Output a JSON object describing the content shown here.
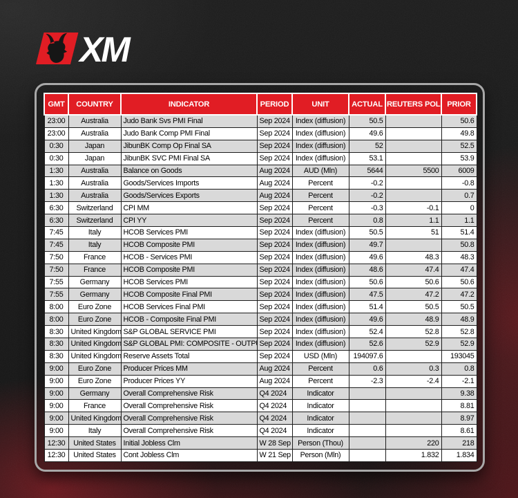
{
  "brand": {
    "logo_text": "XM",
    "logo_red": "#e11d24",
    "logo_text_color": "#ffffff",
    "bull_icon_color": "#161616"
  },
  "table": {
    "colors": {
      "header_bg": "#e11d24",
      "header_fg": "#ffffff",
      "row_odd": "#d9d9d9",
      "row_even": "#ffffff",
      "grid": "#1c1c1c",
      "panel_border": "#a8a8a8"
    },
    "headers": [
      "GMT",
      "COUNTRY",
      "INDICATOR",
      "PERIOD",
      "UNIT",
      "ACTUAL",
      "REUTERS POLL",
      "PRIOR"
    ],
    "rows": [
      [
        "23:00",
        "Australia",
        "Judo Bank Svs PMI Final",
        "Sep 2024",
        "Index (diffusion)",
        "50.5",
        "",
        "50.6"
      ],
      [
        "23:00",
        "Australia",
        "Judo Bank Comp PMI Final",
        "Sep 2024",
        "Index (diffusion)",
        "49.6",
        "",
        "49.8"
      ],
      [
        "0:30",
        "Japan",
        "JibunBK Comp Op Final SA",
        "Sep 2024",
        "Index (diffusion)",
        "52",
        "",
        "52.5"
      ],
      [
        "0:30",
        "Japan",
        "JibunBK SVC PMI Final SA",
        "Sep 2024",
        "Index (diffusion)",
        "53.1",
        "",
        "53.9"
      ],
      [
        "1:30",
        "Australia",
        "Balance on Goods",
        "Aug 2024",
        "AUD (Mln)",
        "5644",
        "5500",
        "6009"
      ],
      [
        "1:30",
        "Australia",
        "Goods/Services Imports",
        "Aug 2024",
        "Percent",
        "-0.2",
        "",
        "-0.8"
      ],
      [
        "1:30",
        "Australia",
        "Goods/Services Exports",
        "Aug 2024",
        "Percent",
        "-0.2",
        "",
        "0.7"
      ],
      [
        "6:30",
        "Switzerland",
        "CPI MM",
        "Sep 2024",
        "Percent",
        "-0.3",
        "-0.1",
        "0"
      ],
      [
        "6:30",
        "Switzerland",
        "CPI YY",
        "Sep 2024",
        "Percent",
        "0.8",
        "1.1",
        "1.1"
      ],
      [
        "7:45",
        "Italy",
        "HCOB Services PMI",
        "Sep 2024",
        "Index (diffusion)",
        "50.5",
        "51",
        "51.4"
      ],
      [
        "7:45",
        "Italy",
        "HCOB Composite PMI",
        "Sep 2024",
        "Index (diffusion)",
        "49.7",
        "",
        "50.8"
      ],
      [
        "7:50",
        "France",
        "HCOB - Services PMI",
        "Sep 2024",
        "Index (diffusion)",
        "49.6",
        "48.3",
        "48.3"
      ],
      [
        "7:50",
        "France",
        "HCOB Composite PMI",
        "Sep 2024",
        "Index (diffusion)",
        "48.6",
        "47.4",
        "47.4"
      ],
      [
        "7:55",
        "Germany",
        "HCOB Services PMI",
        "Sep 2024",
        "Index (diffusion)",
        "50.6",
        "50.6",
        "50.6"
      ],
      [
        "7:55",
        "Germany",
        "HCOB Composite Final PMI",
        "Sep 2024",
        "Index (diffusion)",
        "47.5",
        "47.2",
        "47.2"
      ],
      [
        "8:00",
        "Euro Zone",
        "HCOB Services Final PMI",
        "Sep 2024",
        "Index (diffusion)",
        "51.4",
        "50.5",
        "50.5"
      ],
      [
        "8:00",
        "Euro Zone",
        "HCOB - Composite Final PMI",
        "Sep 2024",
        "Index (diffusion)",
        "49.6",
        "48.9",
        "48.9"
      ],
      [
        "8:30",
        "United Kingdom",
        "S&P GLOBAL SERVICE PMI",
        "Sep 2024",
        "Index (diffusion)",
        "52.4",
        "52.8",
        "52.8"
      ],
      [
        "8:30",
        "United Kingdom",
        "S&P GLOBAL PMI: COMPOSITE - OUTPUT",
        "Sep 2024",
        "Index (diffusion)",
        "52.6",
        "52.9",
        "52.9"
      ],
      [
        "8:30",
        "United Kingdom",
        "Reserve Assets Total",
        "Sep 2024",
        "USD (Mln)",
        "194097.6",
        "",
        "193045"
      ],
      [
        "9:00",
        "Euro Zone",
        "Producer Prices MM",
        "Aug 2024",
        "Percent",
        "0.6",
        "0.3",
        "0.8"
      ],
      [
        "9:00",
        "Euro Zone",
        "Producer Prices YY",
        "Aug 2024",
        "Percent",
        "-2.3",
        "-2.4",
        "-2.1"
      ],
      [
        "9:00",
        "Germany",
        "Overall Comprehensive Risk",
        "Q4 2024",
        "Indicator",
        "",
        "",
        "9.38"
      ],
      [
        "9:00",
        "France",
        "Overall Comprehensive Risk",
        "Q4 2024",
        "Indicator",
        "",
        "",
        "8.81"
      ],
      [
        "9:00",
        "United Kingdom",
        "Overall Comprehensive Risk",
        "Q4 2024",
        "Indicator",
        "",
        "",
        "8.97"
      ],
      [
        "9:00",
        "Italy",
        "Overall Comprehensive Risk",
        "Q4 2024",
        "Indicator",
        "",
        "",
        "8.61"
      ],
      [
        "12:30",
        "United States",
        "Initial Jobless Clm",
        "W 28 Sep",
        "Person (Thou)",
        "",
        "220",
        "218"
      ],
      [
        "12:30",
        "United States",
        "Cont Jobless Clm",
        "W 21 Sep",
        "Person (Mln)",
        "",
        "1.832",
        "1.834"
      ]
    ]
  }
}
